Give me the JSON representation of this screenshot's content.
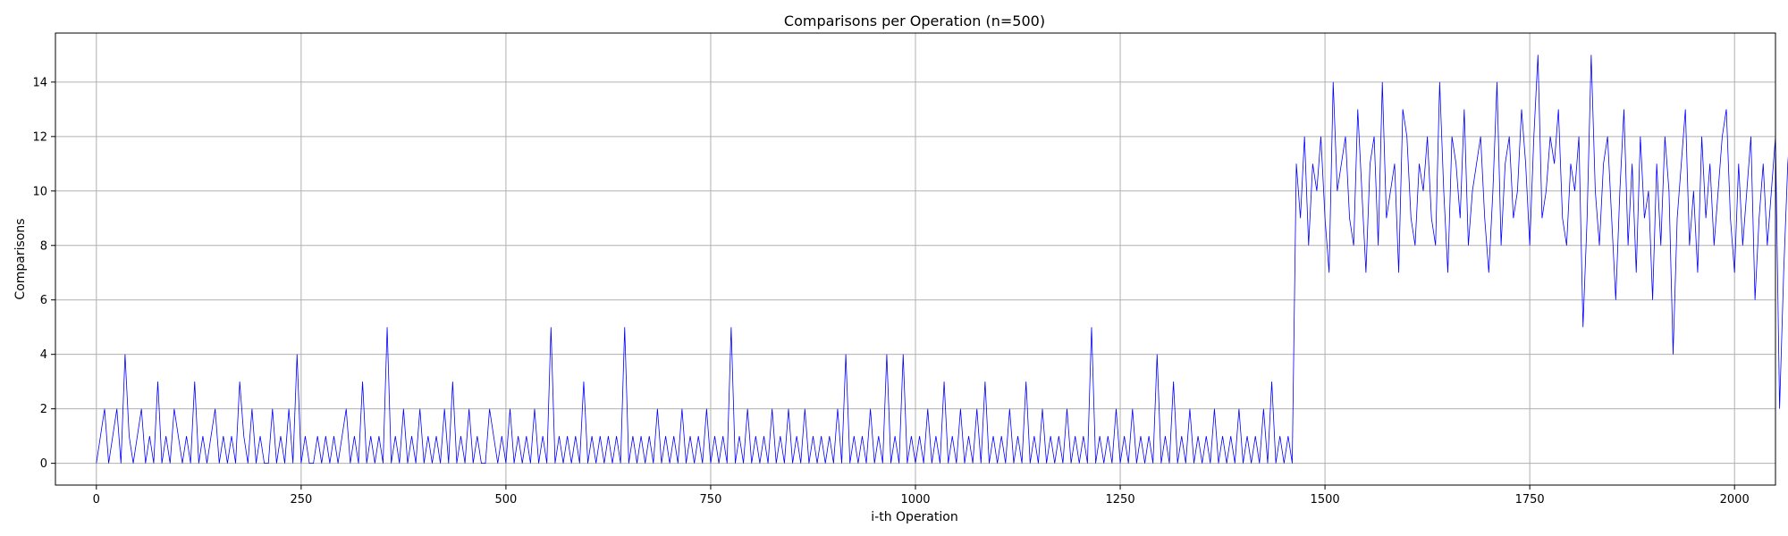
{
  "chart_data": {
    "type": "line",
    "title": "Comparisons per Operation (n=500)",
    "xlabel": "i-th Operation",
    "ylabel": "Comparisons",
    "xlim": [
      -50,
      2050
    ],
    "ylim": [
      -0.8,
      15.8
    ],
    "xticks": [
      0,
      250,
      500,
      750,
      1000,
      1250,
      1500,
      1750,
      2000
    ],
    "yticks": [
      0,
      2,
      4,
      6,
      8,
      10,
      12,
      14
    ],
    "grid": true,
    "series": [
      {
        "color": "#0000ff",
        "x_start": 0,
        "x_step": 5,
        "values": [
          0,
          1,
          2,
          0,
          1,
          2,
          0,
          4,
          1,
          0,
          1,
          2,
          0,
          1,
          0,
          3,
          0,
          1,
          0,
          2,
          1,
          0,
          1,
          0,
          3,
          0,
          1,
          0,
          1,
          2,
          0,
          1,
          0,
          1,
          0,
          3,
          1,
          0,
          2,
          0,
          1,
          0,
          0,
          2,
          0,
          1,
          0,
          2,
          0,
          4,
          0,
          1,
          0,
          0,
          1,
          0,
          1,
          0,
          1,
          0,
          1,
          2,
          0,
          1,
          0,
          3,
          0,
          1,
          0,
          1,
          0,
          5,
          0,
          1,
          0,
          2,
          0,
          1,
          0,
          2,
          0,
          1,
          0,
          1,
          0,
          2,
          0,
          3,
          0,
          1,
          0,
          2,
          0,
          1,
          0,
          0,
          2,
          1,
          0,
          1,
          0,
          2,
          0,
          1,
          0,
          1,
          0,
          2,
          0,
          1,
          0,
          5,
          0,
          1,
          0,
          1,
          0,
          1,
          0,
          3,
          0,
          1,
          0,
          1,
          0,
          1,
          0,
          1,
          0,
          5,
          0,
          1,
          0,
          1,
          0,
          1,
          0,
          2,
          0,
          1,
          0,
          1,
          0,
          2,
          0,
          1,
          0,
          1,
          0,
          2,
          0,
          1,
          0,
          1,
          0,
          5,
          0,
          1,
          0,
          2,
          0,
          1,
          0,
          1,
          0,
          2,
          0,
          1,
          0,
          2,
          0,
          1,
          0,
          2,
          0,
          1,
          0,
          1,
          0,
          1,
          0,
          2,
          0,
          4,
          0,
          1,
          0,
          1,
          0,
          2,
          0,
          1,
          0,
          4,
          0,
          1,
          0,
          4,
          0,
          1,
          0,
          1,
          0,
          2,
          0,
          1,
          0,
          3,
          0,
          1,
          0,
          2,
          0,
          1,
          0,
          2,
          0,
          3,
          0,
          1,
          0,
          1,
          0,
          2,
          0,
          1,
          0,
          3,
          0,
          1,
          0,
          2,
          0,
          1,
          0,
          1,
          0,
          2,
          0,
          1,
          0,
          1,
          0,
          5,
          0,
          1,
          0,
          1,
          0,
          2,
          0,
          1,
          0,
          2,
          0,
          1,
          0,
          1,
          0,
          4,
          0,
          1,
          0,
          3,
          0,
          1,
          0,
          2,
          0,
          1,
          0,
          1,
          0,
          2,
          0,
          1,
          0,
          1,
          0,
          2,
          0,
          1,
          0,
          1,
          0,
          2,
          0,
          3,
          0,
          1,
          0,
          1,
          0,
          11,
          9,
          12,
          8,
          11,
          10,
          12,
          9,
          7,
          14,
          10,
          11,
          12,
          9,
          8,
          13,
          10,
          7,
          11,
          12,
          8,
          14,
          9,
          10,
          11,
          7,
          13,
          12,
          9,
          8,
          11,
          10,
          12,
          9,
          8,
          14,
          10,
          7,
          12,
          11,
          9,
          13,
          8,
          10,
          11,
          12,
          9,
          7,
          10,
          14,
          8,
          11,
          12,
          9,
          10,
          13,
          11,
          8,
          12,
          15,
          9,
          10,
          12,
          11,
          13,
          9,
          8,
          11,
          10,
          12,
          5,
          9,
          15,
          10,
          8,
          11,
          12,
          9,
          6,
          10,
          13,
          8,
          11,
          7,
          12,
          9,
          10,
          6,
          11,
          8,
          12,
          10,
          4,
          9,
          11,
          13,
          8,
          10,
          7,
          12,
          9,
          11,
          8,
          10,
          12,
          13,
          9,
          7,
          11,
          8,
          10,
          12,
          6,
          9,
          11,
          8,
          10,
          12,
          2,
          7,
          11,
          13,
          9,
          10,
          12,
          8,
          14,
          11,
          9,
          7,
          10,
          12,
          8,
          11,
          13,
          9,
          6,
          10,
          12,
          8,
          11,
          7,
          10,
          12,
          9,
          8,
          11,
          10,
          4,
          9,
          12,
          8,
          11,
          7,
          10,
          12,
          9,
          8,
          11,
          10,
          7,
          13,
          9,
          8,
          11,
          10,
          12,
          9,
          6,
          11,
          8,
          10,
          3,
          9,
          12,
          7,
          11,
          8,
          10,
          12,
          9,
          7,
          11,
          14,
          8,
          10,
          9,
          12,
          7,
          11,
          8,
          10,
          12,
          9,
          7,
          11,
          13,
          8,
          6,
          10,
          12,
          9,
          7,
          11,
          8,
          10,
          13,
          9,
          7,
          11,
          8,
          12,
          6,
          10,
          9,
          11,
          8,
          7,
          10,
          12,
          9,
          6,
          11,
          8,
          10,
          3,
          9,
          12,
          7,
          11,
          8,
          10,
          12,
          13,
          9,
          7,
          11,
          8,
          10,
          12,
          9,
          1,
          11,
          8,
          10,
          12,
          9,
          7,
          11,
          8,
          10,
          12,
          9,
          6,
          11,
          8,
          10,
          7,
          12,
          9,
          8,
          11,
          10,
          6,
          12,
          9,
          7,
          11,
          8,
          10,
          12,
          9,
          3,
          11,
          8,
          10,
          12,
          9,
          7,
          11,
          8,
          10,
          12,
          9,
          14,
          11,
          8,
          10,
          12,
          9,
          7,
          11,
          8,
          10,
          12,
          9,
          6,
          11,
          8,
          10,
          7,
          12,
          9,
          8,
          11,
          10,
          6,
          12,
          9,
          2,
          11,
          8,
          10,
          12,
          9,
          7,
          11,
          8,
          10,
          12,
          9,
          6,
          11,
          8,
          10,
          7,
          12,
          9,
          8,
          11,
          10,
          6,
          12,
          9,
          7,
          11,
          8,
          10,
          12,
          9,
          3,
          11,
          8,
          10,
          12,
          9,
          7,
          11,
          8,
          10,
          12,
          9,
          6,
          11,
          8,
          10,
          7,
          12,
          9,
          8,
          11,
          10,
          6,
          2,
          9,
          7,
          11,
          8,
          10,
          12,
          9,
          6,
          11,
          8,
          10,
          13,
          9,
          7,
          11,
          8,
          10,
          12,
          9,
          6,
          11,
          8,
          10,
          7,
          12,
          9,
          8,
          11,
          10,
          6,
          12,
          9,
          7,
          11,
          8,
          10,
          12,
          9,
          6,
          11,
          8,
          10,
          1,
          12,
          9,
          8,
          11,
          10,
          6,
          12,
          9,
          7,
          11,
          8,
          10,
          12,
          9,
          6,
          11,
          8,
          10,
          7,
          9,
          8,
          5,
          10,
          6,
          7,
          9,
          8,
          5,
          10,
          6,
          7,
          9,
          8,
          5,
          10,
          3,
          7,
          9,
          8,
          5,
          10,
          6,
          7,
          9,
          8,
          5,
          10,
          6,
          12,
          9,
          8,
          5,
          10,
          6,
          7,
          9,
          8,
          3,
          10,
          6,
          7,
          9,
          8,
          5,
          10,
          6,
          7,
          2,
          8,
          5,
          9,
          6,
          7,
          9,
          8,
          5,
          10,
          6,
          7,
          9,
          5,
          3,
          8,
          6,
          7,
          9,
          5,
          4,
          8,
          6,
          7,
          9,
          5,
          3,
          8,
          6,
          7,
          5,
          4,
          6,
          5,
          3,
          5,
          4,
          2,
          5,
          3,
          4,
          2,
          3,
          1,
          2,
          1
        ]
      }
    ]
  }
}
